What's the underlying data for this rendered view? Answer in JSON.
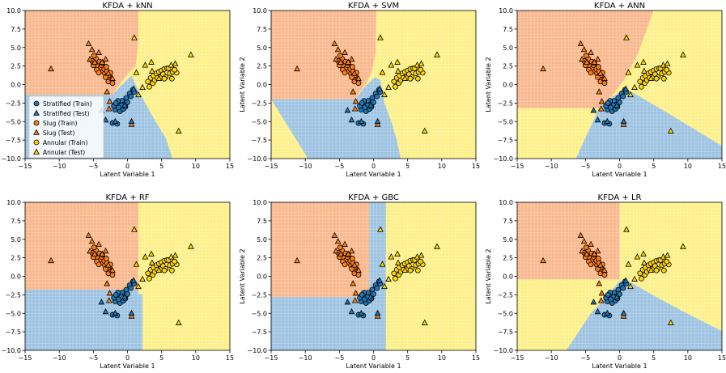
{
  "figure": {
    "x_label": "Latent Variable 1",
    "y_label": "Latent Variable 2",
    "x_ticks": [
      "−15",
      "−10",
      "−5",
      "0",
      "5",
      "10",
      "15"
    ],
    "y_ticks": [
      "−10.0",
      "−7.5",
      "−5.0",
      "−2.5",
      "0.0",
      "2.5",
      "5.0",
      "7.5",
      "10.0"
    ]
  },
  "colors": {
    "stratified": "#1f77b4",
    "slug": "#ff7f0e",
    "annular": "#ffd700",
    "region_stratified": "#9dc3e2",
    "region_slug": "#f9b88d",
    "region_annular": "#fdf089"
  },
  "legend": [
    {
      "label": "Stratified (Train)",
      "cls": "stratified",
      "marker": "circle"
    },
    {
      "label": "Stratified (Test)",
      "cls": "stratified",
      "marker": "triangle"
    },
    {
      "label": "Slug (Train)",
      "cls": "slug",
      "marker": "circle"
    },
    {
      "label": "Slug (Test)",
      "cls": "slug",
      "marker": "triangle"
    },
    {
      "label": "Annular (Train)",
      "cls": "annular",
      "marker": "circle"
    },
    {
      "label": "Annular (Test)",
      "cls": "annular",
      "marker": "triangle"
    }
  ],
  "chart_data": [
    {
      "type": "scatter",
      "title": "KFDA + kNN",
      "method": "kNN",
      "xlim": [
        -15,
        15
      ],
      "ylim": [
        -10,
        10
      ],
      "legend": "lower-left",
      "ylabel_shown": false
    },
    {
      "type": "scatter",
      "title": "KFDA + SVM",
      "method": "SVM",
      "xlim": [
        -15,
        15
      ],
      "ylim": [
        -10,
        10
      ],
      "legend": "none",
      "ylabel_shown": true
    },
    {
      "type": "scatter",
      "title": "KFDA + ANN",
      "method": "ANN",
      "xlim": [
        -15,
        15
      ],
      "ylim": [
        -10,
        10
      ],
      "legend": "none",
      "ylabel_shown": true
    },
    {
      "type": "scatter",
      "title": "KFDA + RF",
      "method": "RF",
      "xlim": [
        -15,
        15
      ],
      "ylim": [
        -10,
        10
      ],
      "legend": "none",
      "ylabel_shown": false
    },
    {
      "type": "scatter",
      "title": "KFDA + GBC",
      "method": "GBC",
      "xlim": [
        -15,
        15
      ],
      "ylim": [
        -10,
        10
      ],
      "legend": "none",
      "ylabel_shown": true
    },
    {
      "type": "scatter",
      "title": "KFDA + LR",
      "method": "LR",
      "xlim": [
        -15,
        15
      ],
      "ylim": [
        -10,
        10
      ],
      "legend": "none",
      "ylabel_shown": true
    }
  ],
  "points": {
    "stratified_train": [
      [
        -1.5,
        -3.0
      ],
      [
        -1.2,
        -2.6
      ],
      [
        -0.8,
        -2.2
      ],
      [
        -1.8,
        -3.4
      ],
      [
        -1.0,
        -3.2
      ],
      [
        -0.5,
        -2.7
      ],
      [
        -1.4,
        -2.2
      ],
      [
        -0.2,
        -1.8
      ],
      [
        0.3,
        -1.2
      ],
      [
        0.8,
        -0.7
      ],
      [
        -2.0,
        -2.9
      ],
      [
        -1.1,
        -3.6
      ],
      [
        -0.6,
        -3.3
      ],
      [
        -1.7,
        -2.5
      ],
      [
        0.0,
        -2.4
      ],
      [
        0.5,
        -1.6
      ],
      [
        -0.9,
        -2.8
      ],
      [
        -1.3,
        -3.1
      ],
      [
        -2.2,
        -5.2
      ],
      [
        -1.5,
        -5.3
      ],
      [
        1.0,
        -1.0
      ],
      [
        -0.3,
        -3.0
      ]
    ],
    "stratified_test": [
      [
        -3.2,
        -4.8
      ],
      [
        -3.8,
        -3.5
      ],
      [
        -1.8,
        -5.0
      ],
      [
        0.6,
        -5.0
      ],
      [
        -0.4,
        -2.8
      ],
      [
        0.9,
        -0.6
      ]
    ],
    "slug_train": [
      [
        -5.2,
        3.2
      ],
      [
        -4.8,
        2.8
      ],
      [
        -4.4,
        2.5
      ],
      [
        -4.0,
        2.2
      ],
      [
        -3.6,
        1.8
      ],
      [
        -3.3,
        1.5
      ],
      [
        -3.0,
        1.2
      ],
      [
        -2.6,
        0.8
      ],
      [
        -4.6,
        3.5
      ],
      [
        -4.1,
        3.1
      ],
      [
        -3.8,
        2.6
      ],
      [
        -3.4,
        2.1
      ],
      [
        -3.0,
        1.8
      ],
      [
        -2.7,
        1.3
      ],
      [
        -2.4,
        0.6
      ],
      [
        -5.0,
        2.6
      ],
      [
        -4.5,
        2.0
      ],
      [
        -4.2,
        1.6
      ],
      [
        -3.2,
        1.0
      ],
      [
        -2.8,
        0.4
      ],
      [
        -4.9,
        3.9
      ],
      [
        -3.7,
        2.9
      ],
      [
        -3.1,
        2.4
      ],
      [
        -2.5,
        1.6
      ],
      [
        -2.2,
        0.2
      ]
    ],
    "slug_test": [
      [
        -5.7,
        5.5
      ],
      [
        -5.5,
        3.4
      ],
      [
        -5.2,
        4.7
      ],
      [
        -4.8,
        3.0
      ],
      [
        -4.2,
        4.3
      ],
      [
        -3.7,
        3.0
      ],
      [
        -3.2,
        3.4
      ],
      [
        -2.8,
        1.5
      ],
      [
        -3.0,
        -1.0
      ],
      [
        -2.6,
        -2.3
      ],
      [
        -2.7,
        -3.3
      ],
      [
        -11.2,
        2.1
      ],
      [
        -2.2,
        0.8
      ],
      [
        0.6,
        -5.4
      ]
    ],
    "annular_train": [
      [
        3.0,
        0.4
      ],
      [
        3.4,
        0.9
      ],
      [
        3.8,
        1.2
      ],
      [
        4.2,
        1.5
      ],
      [
        4.6,
        1.7
      ],
      [
        5.0,
        1.9
      ],
      [
        5.4,
        2.1
      ],
      [
        5.8,
        2.2
      ],
      [
        6.2,
        1.5
      ],
      [
        3.2,
        -0.3
      ],
      [
        3.7,
        0.2
      ],
      [
        4.0,
        0.6
      ],
      [
        4.8,
        1.0
      ],
      [
        5.2,
        1.4
      ],
      [
        5.6,
        1.0
      ],
      [
        6.0,
        2.2
      ],
      [
        6.6,
        1.7
      ],
      [
        7.2,
        1.6
      ],
      [
        6.5,
        0.8
      ],
      [
        5.4,
        0.8
      ],
      [
        4.4,
        0.9
      ],
      [
        6.9,
        2.0
      ]
    ],
    "annular_test": [
      [
        1.0,
        6.3
      ],
      [
        2.6,
        2.6
      ],
      [
        3.6,
        1.8
      ],
      [
        4.6,
        0.8
      ],
      [
        6.4,
        2.6
      ],
      [
        7.0,
        2.8
      ],
      [
        2.2,
        -0.4
      ],
      [
        1.3,
        1.6
      ],
      [
        9.3,
        4.0
      ],
      [
        1.6,
        -1.4
      ],
      [
        7.5,
        -6.3
      ],
      [
        3.5,
        3.0
      ]
    ]
  }
}
